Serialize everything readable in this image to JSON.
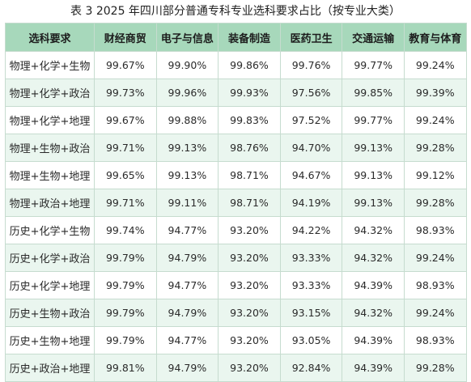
{
  "caption": "表 3  2025 年四川部分普通专科专业选科要求占比（按专业大类）",
  "table": {
    "headers": [
      "选科要求",
      "财经商贸",
      "电子与信息",
      "装备制造",
      "医药卫生",
      "交通运输",
      "教育与体育"
    ],
    "rows": [
      {
        "label": "物理+化学+生物",
        "values": [
          "99.67%",
          "99.90%",
          "99.86%",
          "99.76%",
          "99.77%",
          "99.24%"
        ]
      },
      {
        "label": "物理+化学+政治",
        "values": [
          "99.73%",
          "99.96%",
          "99.93%",
          "97.56%",
          "99.85%",
          "99.39%"
        ]
      },
      {
        "label": "物理+化学+地理",
        "values": [
          "99.67%",
          "99.88%",
          "99.83%",
          "97.52%",
          "99.77%",
          "99.24%"
        ]
      },
      {
        "label": "物理+生物+政治",
        "values": [
          "99.71%",
          "99.13%",
          "98.76%",
          "94.70%",
          "99.13%",
          "99.28%"
        ]
      },
      {
        "label": "物理+生物+地理",
        "values": [
          "99.65%",
          "99.13%",
          "98.71%",
          "94.67%",
          "99.13%",
          "99.12%"
        ]
      },
      {
        "label": "物理+政治+地理",
        "values": [
          "99.71%",
          "99.11%",
          "98.71%",
          "94.19%",
          "99.13%",
          "99.28%"
        ]
      },
      {
        "label": "历史+化学+生物",
        "values": [
          "99.74%",
          "94.77%",
          "93.20%",
          "94.22%",
          "94.32%",
          "98.93%"
        ]
      },
      {
        "label": "历史+化学+政治",
        "values": [
          "99.79%",
          "94.79%",
          "93.20%",
          "93.33%",
          "94.32%",
          "99.24%"
        ]
      },
      {
        "label": "历史+化学+地理",
        "values": [
          "99.79%",
          "94.77%",
          "93.20%",
          "93.33%",
          "94.39%",
          "98.93%"
        ]
      },
      {
        "label": "历史+生物+政治",
        "values": [
          "99.79%",
          "94.79%",
          "93.20%",
          "93.15%",
          "94.32%",
          "99.24%"
        ]
      },
      {
        "label": "历史+生物+地理",
        "values": [
          "99.79%",
          "94.77%",
          "93.20%",
          "93.05%",
          "94.39%",
          "98.93%"
        ]
      },
      {
        "label": "历史+政治+地理",
        "values": [
          "99.81%",
          "94.79%",
          "93.20%",
          "92.84%",
          "94.39%",
          "99.28%"
        ]
      }
    ]
  },
  "colors": {
    "header_bg": "#a7d8bb",
    "row_tint": "#eaf6ef",
    "grid_line": "#c6dccf"
  }
}
